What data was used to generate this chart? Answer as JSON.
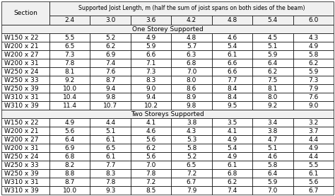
{
  "header_main": "Supported Joist Length, m (half the sum of joist spans on both sides of the beam)",
  "header_col": "Section",
  "col_headers": [
    "2.4",
    "3.0",
    "3.6",
    "4.2",
    "4.8",
    "5.4",
    "6.0"
  ],
  "section1_title": "One Storey Supported",
  "section2_title": "Two Storeys Supported",
  "one_storey_sections": [
    "W150 x 22",
    "W200 x 21",
    "W200 x 27",
    "W200 x 31",
    "W250 x 24",
    "W250 x 33",
    "W250 x 39",
    "W310 x 31",
    "W310 x 39"
  ],
  "one_storey_data": [
    [
      5.5,
      5.2,
      4.9,
      4.8,
      4.6,
      4.5,
      4.3
    ],
    [
      6.5,
      6.2,
      5.9,
      5.7,
      5.4,
      5.1,
      4.9
    ],
    [
      7.3,
      6.9,
      6.6,
      6.3,
      6.1,
      5.9,
      5.8
    ],
    [
      7.8,
      7.4,
      7.1,
      6.8,
      6.6,
      6.4,
      6.2
    ],
    [
      8.1,
      7.6,
      7.3,
      7.0,
      6.6,
      6.2,
      5.9
    ],
    [
      9.2,
      8.7,
      8.3,
      8.0,
      7.7,
      7.5,
      7.3
    ],
    [
      10.0,
      9.4,
      9.0,
      8.6,
      8.4,
      8.1,
      7.9
    ],
    [
      10.4,
      9.8,
      9.4,
      8.9,
      8.4,
      8.0,
      7.6
    ],
    [
      11.4,
      10.7,
      10.2,
      9.8,
      9.5,
      9.2,
      9.0
    ]
  ],
  "two_storey_sections": [
    "W150 x 22",
    "W200 x 21",
    "W200 x 27",
    "W200 x 31",
    "W250 x 24",
    "W250 x 33",
    "W250 x 39",
    "W310 x 31",
    "W310 x 39"
  ],
  "two_storey_data": [
    [
      4.9,
      4.4,
      4.1,
      3.8,
      3.5,
      3.4,
      3.2
    ],
    [
      5.6,
      5.1,
      4.6,
      4.3,
      4.1,
      3.8,
      3.7
    ],
    [
      6.4,
      6.1,
      5.6,
      5.3,
      4.9,
      4.7,
      4.4
    ],
    [
      6.9,
      6.5,
      6.2,
      5.8,
      5.4,
      5.1,
      4.9
    ],
    [
      6.8,
      6.1,
      5.6,
      5.2,
      4.9,
      4.6,
      4.4
    ],
    [
      8.2,
      7.7,
      7.0,
      6.5,
      6.1,
      5.8,
      5.5
    ],
    [
      8.8,
      8.3,
      7.8,
      7.2,
      6.8,
      6.4,
      6.1
    ],
    [
      8.7,
      7.8,
      7.2,
      6.7,
      6.2,
      5.9,
      5.6
    ],
    [
      10.0,
      9.3,
      8.5,
      7.9,
      7.4,
      7.0,
      6.7
    ]
  ],
  "bg_color": "#ffffff",
  "header_bg": "#f0f0f0",
  "border_color": "#000000",
  "font_size": 6.5,
  "lw": 0.5
}
